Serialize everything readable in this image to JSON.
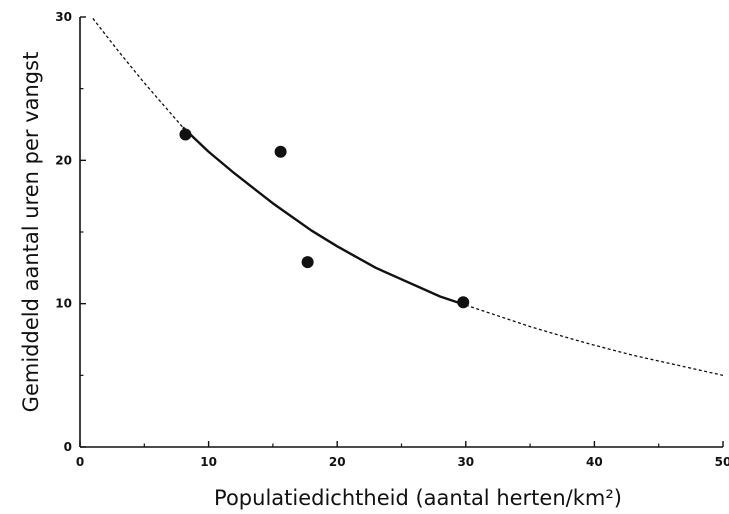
{
  "chart_data": {
    "type": "scatter",
    "xlabel": "Populatiedichtheid (aantal herten/km²)",
    "ylabel": "Gemiddeld aantal uren per vangst",
    "xlim": [
      0,
      50
    ],
    "ylim": [
      0,
      30
    ],
    "x_ticks": [
      "0",
      "10",
      "20",
      "30",
      "40",
      "50"
    ],
    "y_ticks": [
      "0",
      "10",
      "20",
      "30"
    ],
    "grid": false,
    "points": [
      {
        "x": 8.2,
        "y": 21.8
      },
      {
        "x": 15.6,
        "y": 20.6
      },
      {
        "x": 17.7,
        "y": 12.9
      },
      {
        "x": 29.8,
        "y": 10.1
      }
    ],
    "curve": {
      "x": [
        1,
        3,
        5,
        8,
        10,
        12,
        15,
        18,
        20,
        23,
        25,
        28,
        30,
        33,
        35,
        38,
        40,
        43,
        45,
        48,
        50
      ],
      "y": [
        29.9,
        27.6,
        25.4,
        22.3,
        20.6,
        19.1,
        17.0,
        15.1,
        14.0,
        12.5,
        11.7,
        10.5,
        9.9,
        9.0,
        8.4,
        7.6,
        7.1,
        6.4,
        6.0,
        5.4,
        5.0
      ],
      "solid_range": [
        8,
        30
      ]
    },
    "colors": {
      "ink": "#111111",
      "background": "#ffffff"
    }
  }
}
